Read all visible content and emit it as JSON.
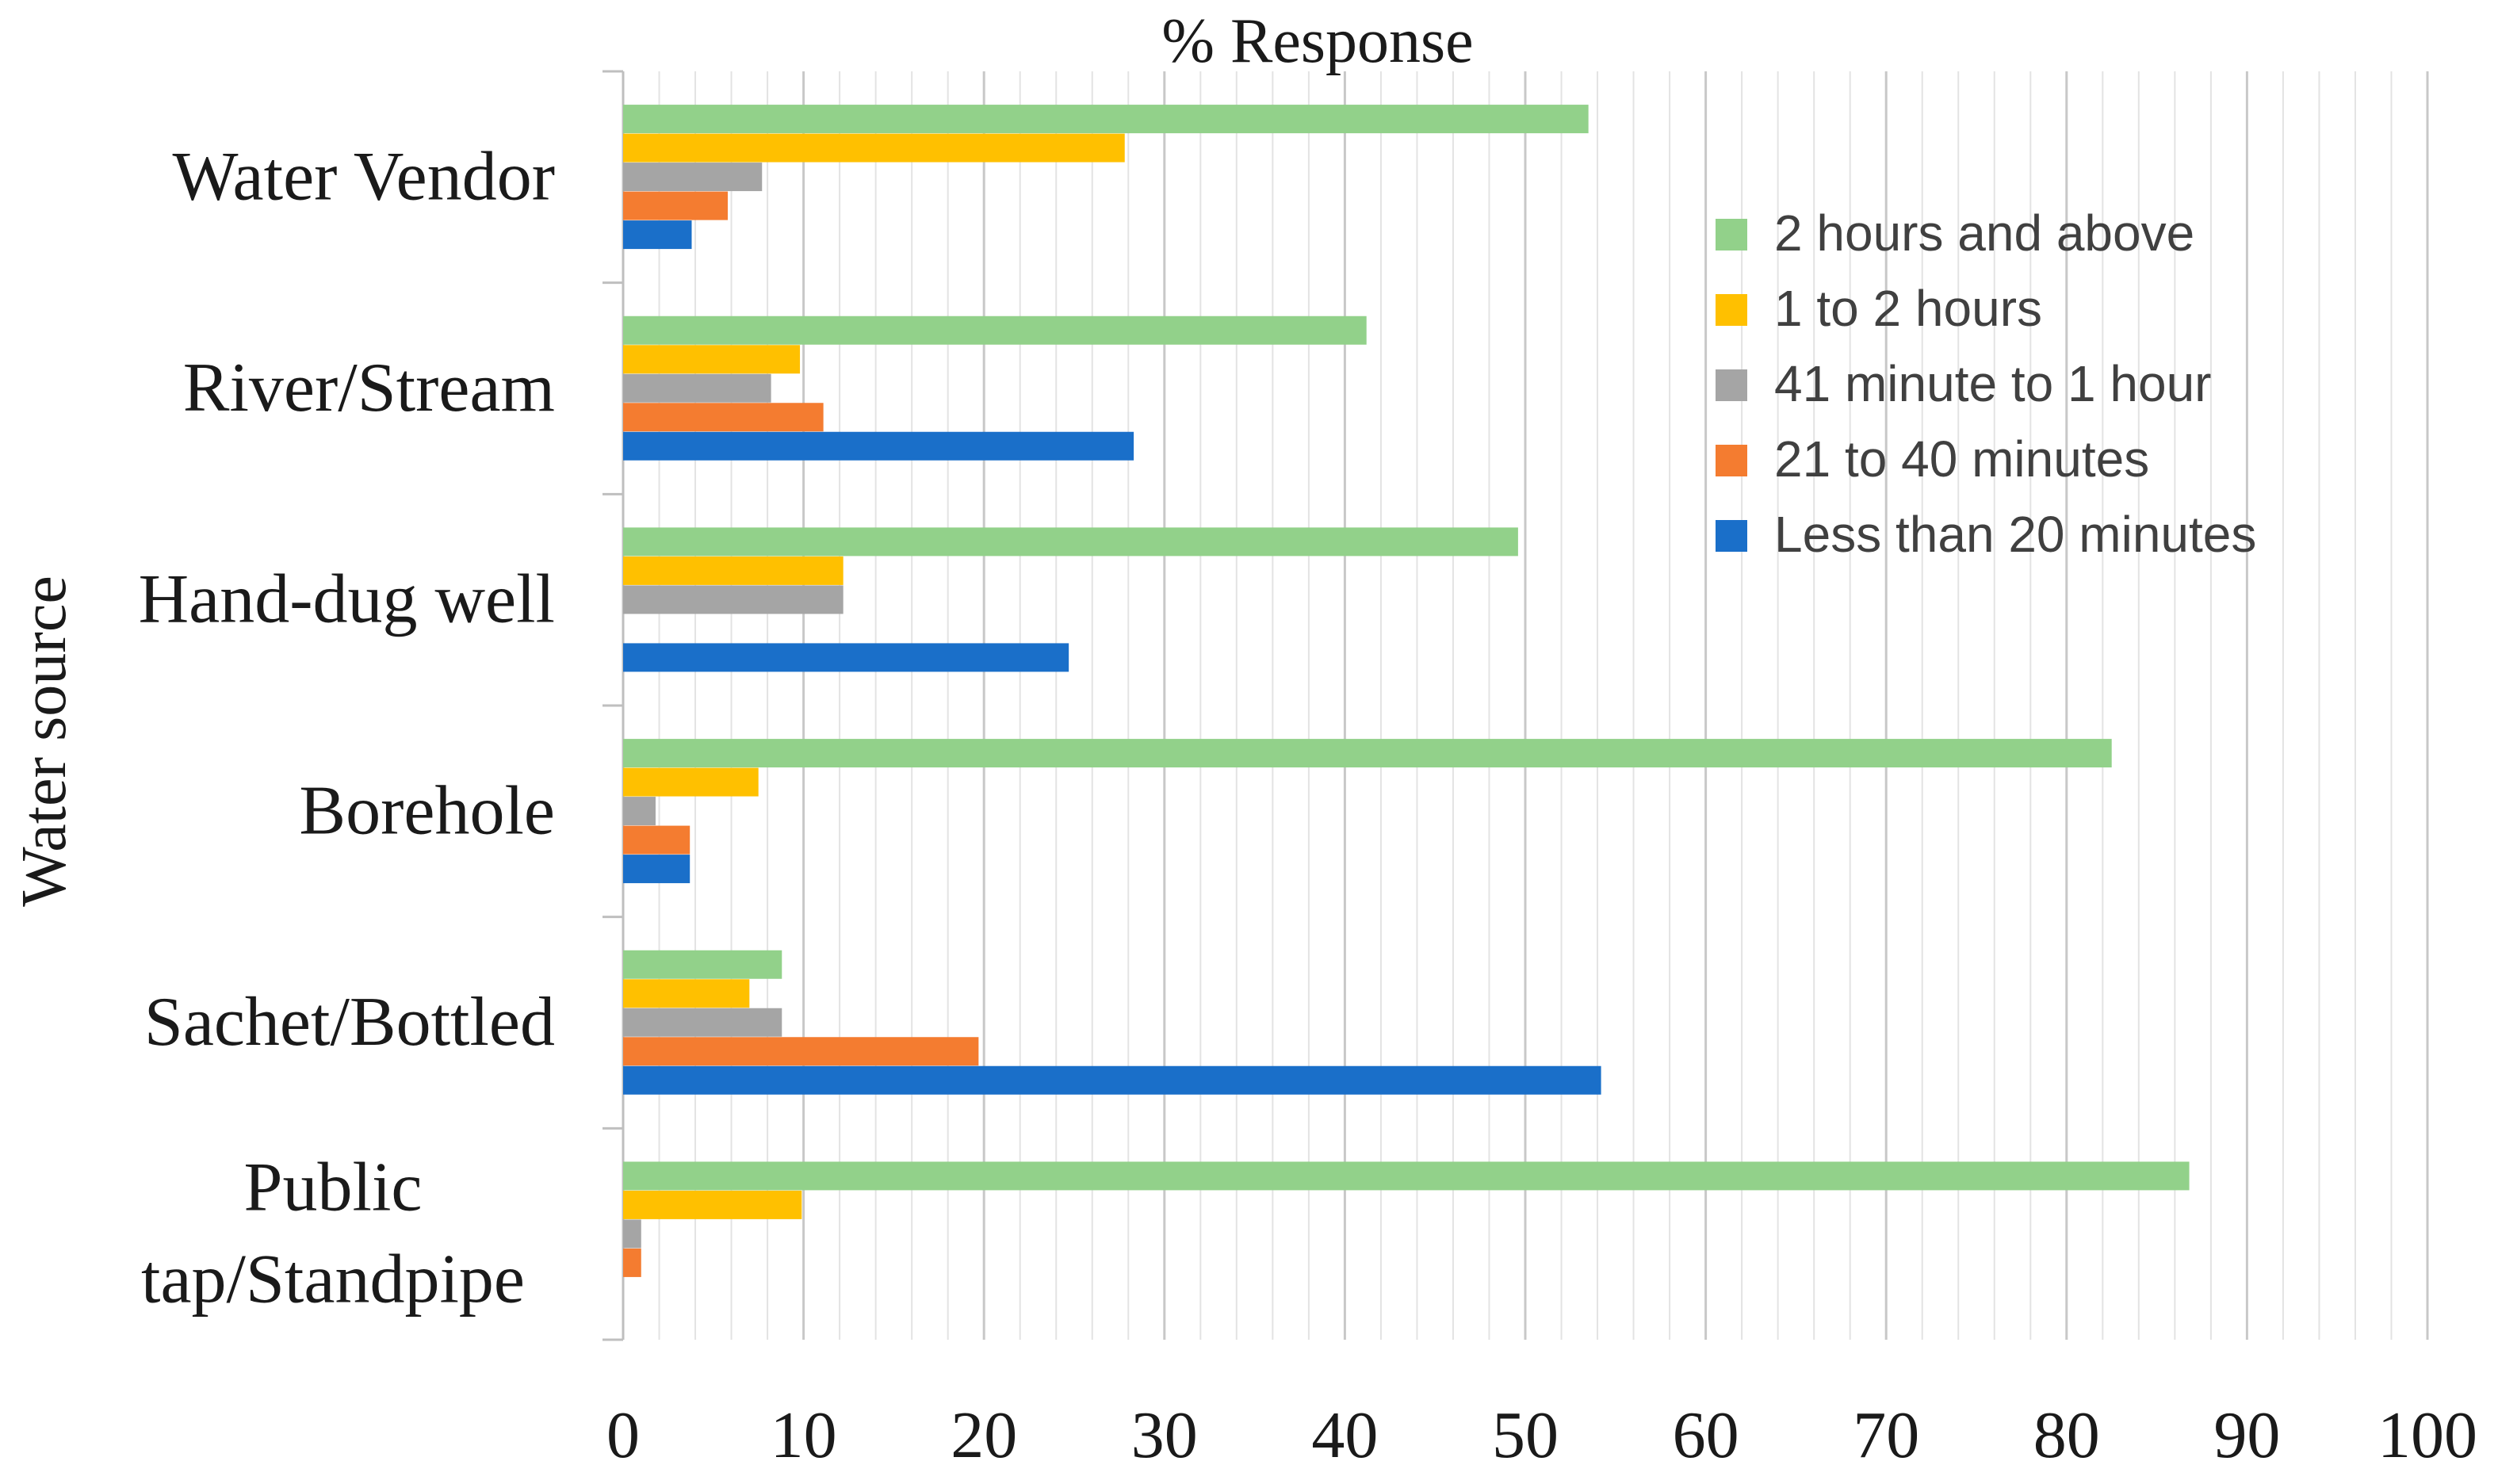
{
  "chart_data": {
    "type": "bar",
    "orientation": "horizontal",
    "title": "% Response",
    "xlabel": "",
    "ylabel": "Water source",
    "xlim": [
      0,
      100
    ],
    "x_ticks": [
      "0",
      "10",
      "20",
      "30",
      "40",
      "50",
      "60",
      "70",
      "80",
      "90",
      "100"
    ],
    "grid": true,
    "legend_position": "top-right",
    "categories": [
      {
        "label": "Water Vendor",
        "lines": [
          "Water Vendor"
        ]
      },
      {
        "label": "River/Stream",
        "lines": [
          "River/Stream"
        ]
      },
      {
        "label": "Hand-dug well",
        "lines": [
          "Hand-dug well"
        ]
      },
      {
        "label": "Borehole",
        "lines": [
          "Borehole"
        ]
      },
      {
        "label": "Sachet/Bottled",
        "lines": [
          "Sachet/Bottled"
        ]
      },
      {
        "label": "Public tap/Standpipe",
        "lines": [
          "Public",
          "tap/Standpipe"
        ]
      }
    ],
    "series": [
      {
        "name": "2 hours and above",
        "color": "#92d18a",
        "values": [
          53.5,
          41.2,
          49.6,
          82.5,
          8.8,
          86.8
        ]
      },
      {
        "name": "1 to 2 hours",
        "color": "#ffc000",
        "values": [
          27.8,
          9.8,
          12.2,
          7.5,
          7.0,
          9.9
        ]
      },
      {
        "name": "41 minute to 1 hour",
        "color": "#a5a5a5",
        "values": [
          7.7,
          8.2,
          12.2,
          1.8,
          8.8,
          1.0
        ]
      },
      {
        "name": "21 to 40 minutes",
        "color": "#f47c30",
        "values": [
          5.8,
          11.1,
          0,
          3.7,
          19.7,
          1.0
        ]
      },
      {
        "name": "Less than 20 minutes",
        "color": "#1a6fc9",
        "values": [
          3.8,
          28.3,
          24.7,
          3.7,
          54.2,
          0
        ]
      }
    ]
  }
}
